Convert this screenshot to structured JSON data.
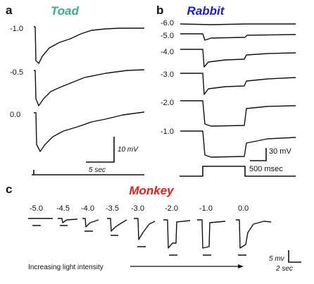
{
  "panels": [
    {
      "letter": "a",
      "title": "Toad",
      "title_color": "#3bab8b",
      "trace_labels": [
        "-1.0",
        "-0.5",
        "0.0"
      ],
      "scale_bar": {
        "vertical": "10 mV",
        "horizontal": "5 sec"
      }
    },
    {
      "letter": "b",
      "title": "Rabbit",
      "title_color": "#1c1cd8",
      "trace_labels": [
        "-6.0",
        "-5.0",
        "-4.0",
        "-3.0",
        "-2.0",
        "-1.0"
      ],
      "scale_bar": {
        "vertical": "30 mV",
        "horizontal": "500 msec"
      }
    },
    {
      "letter": "c",
      "title": "Monkey",
      "title_color": "#e0201c",
      "trace_labels": [
        "-5.0",
        "-4.5",
        "-4.0",
        "-3.5",
        "-3.0",
        "-2.0",
        "-1.0",
        "0.0"
      ],
      "scale_bar": {
        "vertical": "5 mv",
        "horizontal": "2 sec"
      },
      "arrow_label": "Increasing light intensity"
    }
  ]
}
